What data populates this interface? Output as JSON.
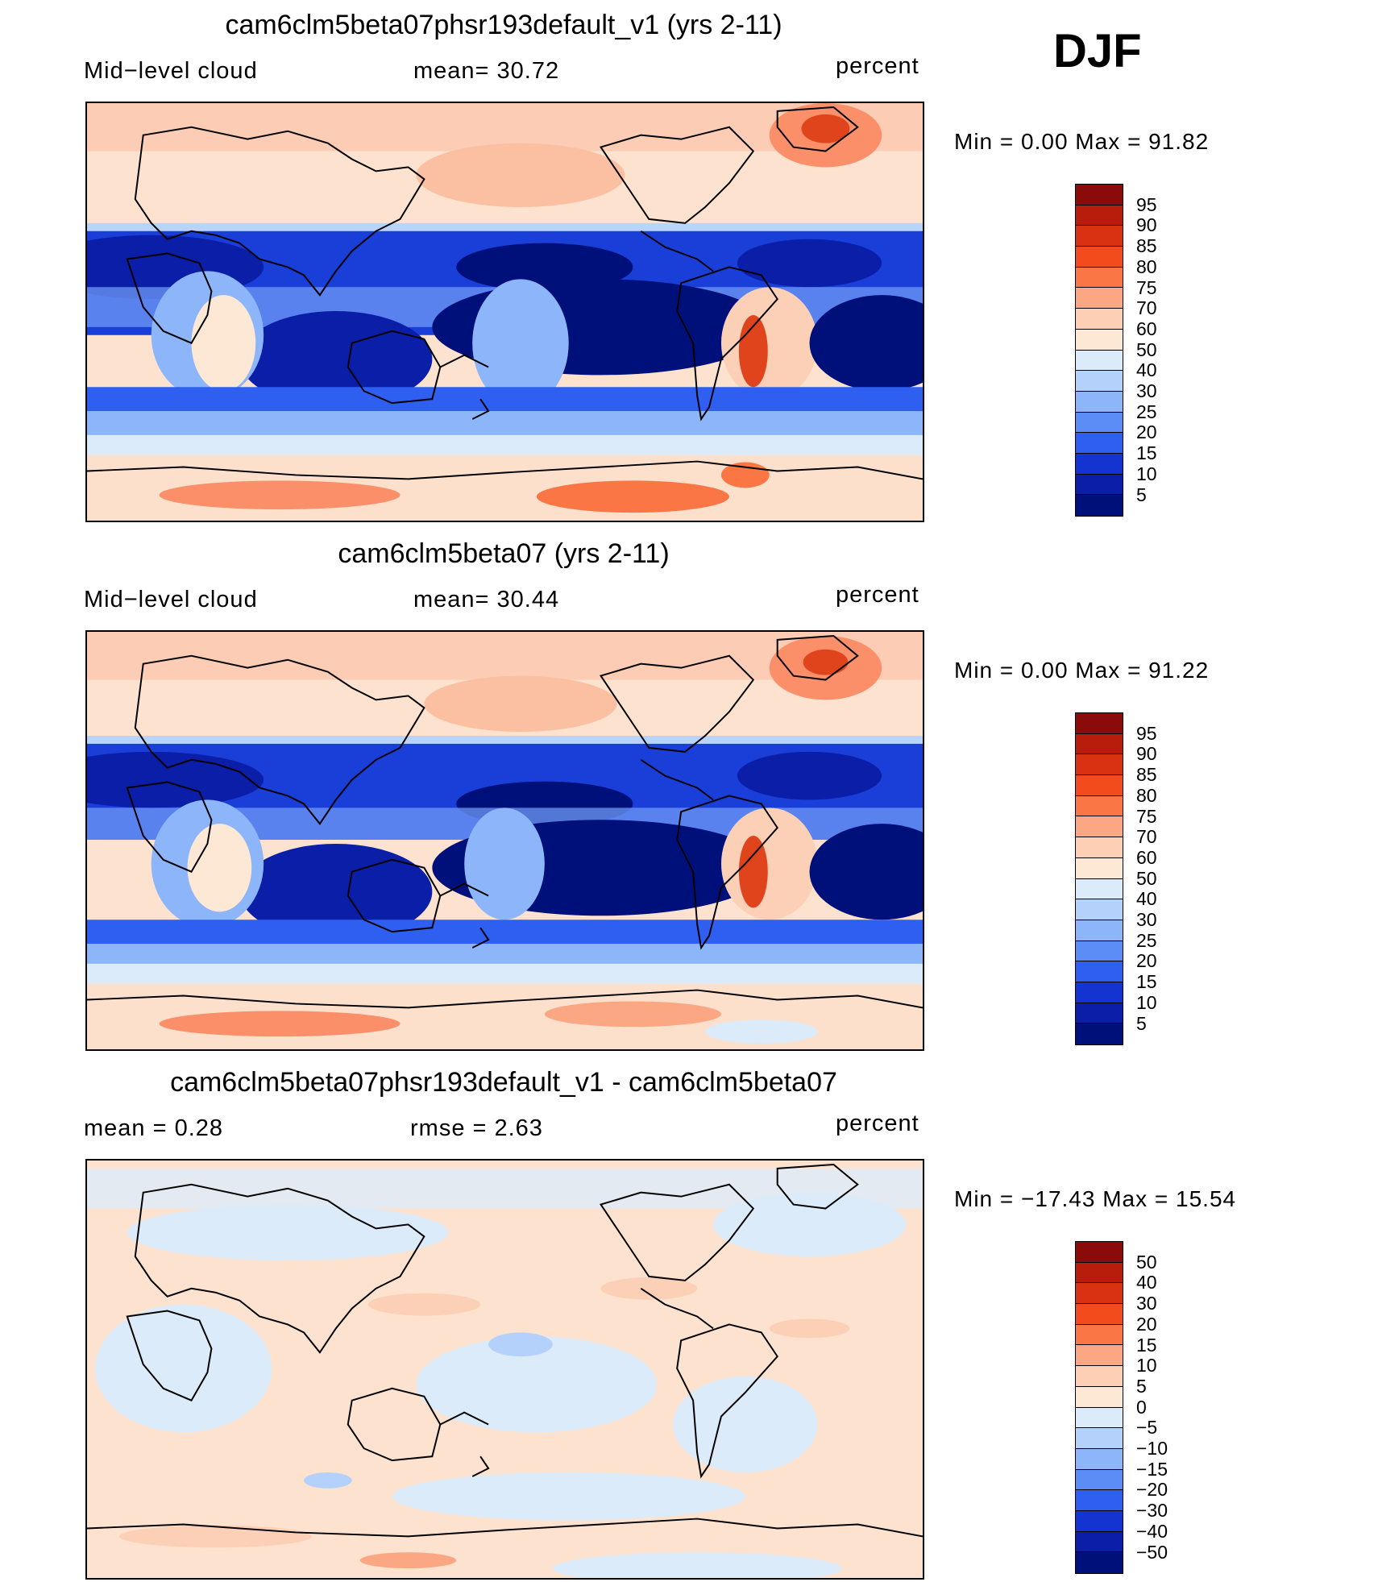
{
  "season": "DJF",
  "panels": [
    {
      "title": "cam6clm5beta07phsr193default_v1 (yrs 2-11)",
      "left_label": "Mid−level cloud",
      "mid_label": "mean=   30.72",
      "units": "percent",
      "stats": "Min  =     0.00  Max  =    91.82",
      "colorbar": {
        "labels": [
          "95",
          "90",
          "85",
          "80",
          "75",
          "70",
          "60",
          "50",
          "40",
          "30",
          "25",
          "20",
          "15",
          "10",
          "5"
        ],
        "colors": [
          "#8b0a0a",
          "#b81c0a",
          "#d93212",
          "#f24b1e",
          "#fb7645",
          "#fca783",
          "#fdcfb4",
          "#fde8d6",
          "#dcebfa",
          "#b3d1fa",
          "#8db5fa",
          "#5c8cf5",
          "#2f5ff0",
          "#1434d2",
          "#0a1ea8",
          "#00107a"
        ]
      },
      "map_style": "control"
    },
    {
      "title": "cam6clm5beta07 (yrs 2-11)",
      "left_label": "Mid−level cloud",
      "mid_label": "mean=   30.44",
      "units": "percent",
      "stats": "Min  =     0.00  Max  =    91.22",
      "colorbar": {
        "labels": [
          "95",
          "90",
          "85",
          "80",
          "75",
          "70",
          "60",
          "50",
          "40",
          "30",
          "25",
          "20",
          "15",
          "10",
          "5"
        ],
        "colors": [
          "#8b0a0a",
          "#b81c0a",
          "#d93212",
          "#f24b1e",
          "#fb7645",
          "#fca783",
          "#fdcfb4",
          "#fde8d6",
          "#dcebfa",
          "#b3d1fa",
          "#8db5fa",
          "#5c8cf5",
          "#2f5ff0",
          "#1434d2",
          "#0a1ea8",
          "#00107a"
        ]
      },
      "map_style": "control"
    },
    {
      "title": "cam6clm5beta07phsr193default_v1 - cam6clm5beta07",
      "left_label": "mean  =     0.28",
      "mid_label": "rmse  =     2.63",
      "units": "percent",
      "stats": "Min  = −17.43  Max  =    15.54",
      "colorbar": {
        "labels": [
          "50",
          "40",
          "30",
          "20",
          "15",
          "10",
          "5",
          "0",
          "−5",
          "−10",
          "−15",
          "−20",
          "−30",
          "−40",
          "−50"
        ],
        "colors": [
          "#8b0a0a",
          "#b81c0a",
          "#d93212",
          "#f24b1e",
          "#fb7645",
          "#fca783",
          "#fdcfb4",
          "#fde8d6",
          "#dcebfa",
          "#b3d1fa",
          "#8db5fa",
          "#5c8cf5",
          "#2f5ff0",
          "#1434d2",
          "#0a1ea8",
          "#00107a"
        ]
      },
      "map_style": "difference"
    }
  ]
}
